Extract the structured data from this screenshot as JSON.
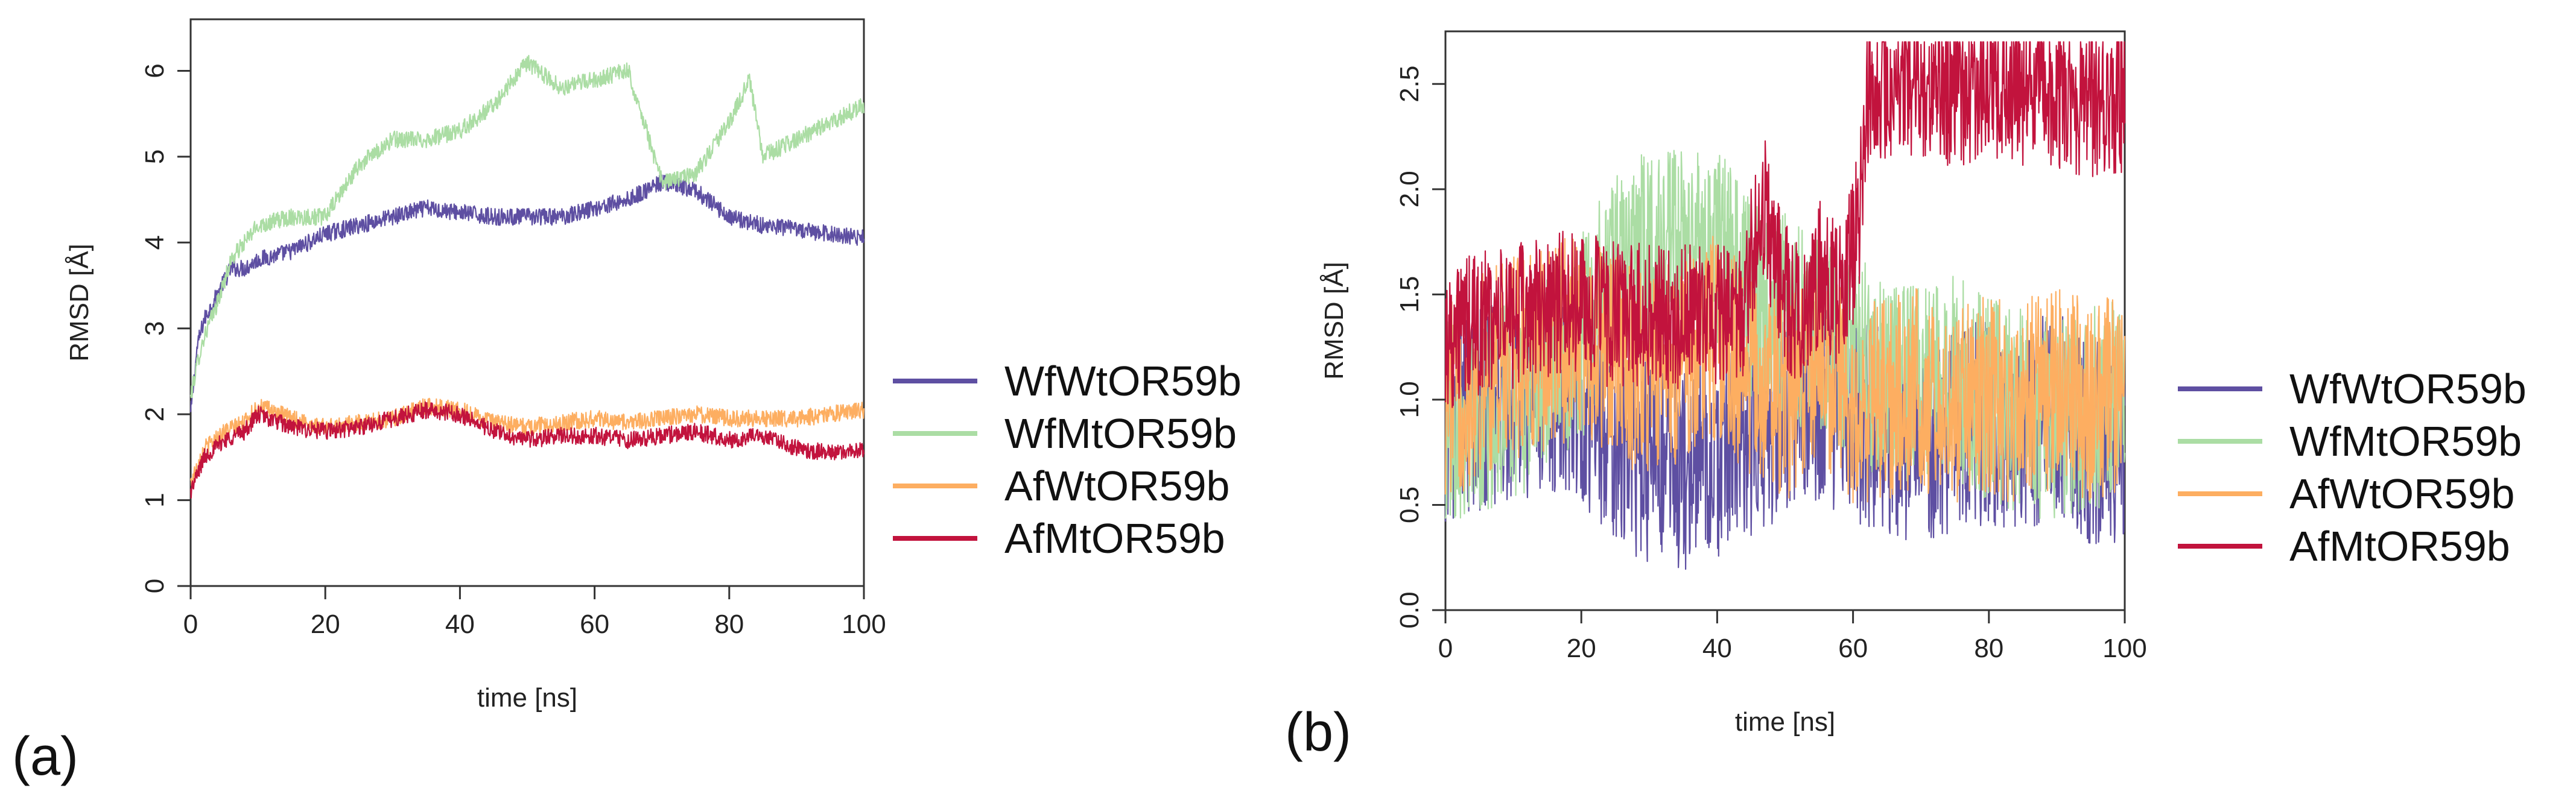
{
  "chart_data": [
    {
      "type": "line",
      "panel_label": "(a)",
      "xlabel": "time [ns]",
      "ylabel": "RMSD [Å]",
      "xlim": [
        0,
        100
      ],
      "ylim": [
        0,
        6.6
      ],
      "xticks": [
        0,
        20,
        40,
        60,
        80,
        100
      ],
      "yticks": [
        0,
        1,
        2,
        3,
        4,
        5,
        6
      ],
      "ytick_labels": [
        "0",
        "1",
        "2",
        "3",
        "4",
        "5",
        "6"
      ],
      "legend_position": "right",
      "series": [
        {
          "name": "WfWtOR59b",
          "color": "#5e4fa2",
          "x": [
            0,
            1,
            2,
            4,
            6,
            8,
            10,
            15,
            20,
            25,
            30,
            35,
            40,
            45,
            50,
            55,
            60,
            65,
            70,
            75,
            80,
            85,
            90,
            95,
            100
          ],
          "y": [
            2.0,
            2.8,
            3.1,
            3.4,
            3.7,
            3.7,
            3.8,
            3.9,
            4.1,
            4.2,
            4.3,
            4.4,
            4.35,
            4.3,
            4.3,
            4.3,
            4.4,
            4.5,
            4.7,
            4.6,
            4.3,
            4.2,
            4.15,
            4.1,
            4.05
          ]
        },
        {
          "name": "WfMtOR59b",
          "color": "#abdda4",
          "x": [
            0,
            1,
            2,
            4,
            6,
            8,
            10,
            15,
            20,
            25,
            30,
            35,
            40,
            45,
            50,
            55,
            60,
            65,
            70,
            75,
            80,
            83,
            85,
            90,
            95,
            100
          ],
          "y": [
            2.2,
            2.6,
            2.9,
            3.3,
            3.8,
            4.0,
            4.2,
            4.3,
            4.3,
            4.9,
            5.2,
            5.2,
            5.3,
            5.6,
            6.1,
            5.8,
            5.9,
            6.0,
            4.7,
            4.8,
            5.4,
            5.9,
            5.0,
            5.2,
            5.4,
            5.6
          ]
        },
        {
          "name": "AfWtOR59b",
          "color": "#fdae61",
          "x": [
            0,
            2,
            5,
            8,
            10,
            15,
            20,
            25,
            30,
            35,
            40,
            45,
            50,
            55,
            60,
            65,
            70,
            75,
            80,
            85,
            90,
            95,
            100
          ],
          "y": [
            1.2,
            1.6,
            1.8,
            1.9,
            2.1,
            1.95,
            1.85,
            1.9,
            1.95,
            2.1,
            2.05,
            1.9,
            1.85,
            1.9,
            1.95,
            1.9,
            1.95,
            2.0,
            1.95,
            1.95,
            1.95,
            2.0,
            2.05
          ]
        },
        {
          "name": "AfMtOR59b",
          "color": "#c2133d",
          "x": [
            0,
            2,
            5,
            8,
            10,
            15,
            20,
            25,
            30,
            35,
            40,
            45,
            50,
            55,
            60,
            65,
            70,
            75,
            80,
            85,
            90,
            95,
            100
          ],
          "y": [
            1.1,
            1.5,
            1.7,
            1.8,
            2.0,
            1.85,
            1.8,
            1.85,
            1.95,
            2.05,
            2.0,
            1.8,
            1.7,
            1.75,
            1.75,
            1.7,
            1.75,
            1.8,
            1.7,
            1.75,
            1.6,
            1.55,
            1.6
          ]
        }
      ]
    },
    {
      "type": "line",
      "panel_label": "(b)",
      "xlabel": "time [ns]",
      "ylabel": "RMSD [Å]",
      "xlim": [
        0,
        100
      ],
      "ylim": [
        0,
        2.75
      ],
      "xticks": [
        0,
        20,
        40,
        60,
        80,
        100
      ],
      "yticks": [
        0,
        0.5,
        1,
        1.5,
        2,
        2.5
      ],
      "ytick_labels": [
        "0.0",
        "0.5",
        "1.0",
        "1.5",
        "2.0",
        "2.5"
      ],
      "legend_position": "right",
      "series": [
        {
          "name": "WfWtOR59b",
          "color": "#5e4fa2",
          "x": [
            0,
            10,
            20,
            25,
            30,
            35,
            40,
            45,
            50,
            55,
            60,
            65,
            70,
            75,
            80,
            85,
            90,
            95,
            100
          ],
          "y": [
            0.9,
            1.0,
            1.0,
            0.8,
            0.7,
            0.65,
            0.7,
            0.8,
            0.95,
            1.0,
            0.9,
            0.85,
            0.8,
            0.85,
            0.9,
            0.85,
            0.95,
            0.8,
            0.8
          ]
        },
        {
          "name": "WfMtOR59b",
          "color": "#abdda4",
          "x": [
            0,
            10,
            20,
            25,
            30,
            35,
            40,
            45,
            50,
            55,
            60,
            65,
            70,
            75,
            80,
            85,
            90,
            95,
            100
          ],
          "y": [
            0.9,
            1.0,
            1.3,
            1.6,
            1.7,
            1.7,
            1.75,
            1.5,
            1.4,
            1.3,
            1.2,
            1.1,
            1.05,
            1.1,
            1.0,
            0.95,
            0.9,
            0.95,
            1.0
          ]
        },
        {
          "name": "AfWtOR59b",
          "color": "#fdae61",
          "x": [
            0,
            10,
            20,
            25,
            30,
            35,
            40,
            45,
            50,
            55,
            60,
            65,
            70,
            75,
            80,
            85,
            90,
            95,
            100
          ],
          "y": [
            1.0,
            1.2,
            1.3,
            1.2,
            1.1,
            1.2,
            1.3,
            1.1,
            1.0,
            1.2,
            1.0,
            1.0,
            1.05,
            1.0,
            1.0,
            1.0,
            1.05,
            1.0,
            1.0
          ]
        },
        {
          "name": "AfMtOR59b",
          "color": "#c2133d",
          "x": [
            0,
            5,
            10,
            15,
            20,
            25,
            30,
            35,
            40,
            44,
            45,
            47,
            48,
            50,
            52,
            55,
            58,
            60,
            61,
            62,
            65,
            70,
            75,
            80,
            85,
            90,
            95,
            100
          ],
          "y": [
            1.3,
            1.35,
            1.4,
            1.45,
            1.45,
            1.4,
            1.4,
            1.4,
            1.4,
            1.35,
            1.7,
            1.9,
            1.7,
            1.5,
            1.4,
            1.6,
            1.5,
            1.7,
            1.9,
            2.45,
            2.5,
            2.5,
            2.45,
            2.5,
            2.45,
            2.45,
            2.4,
            2.4
          ]
        }
      ]
    }
  ]
}
